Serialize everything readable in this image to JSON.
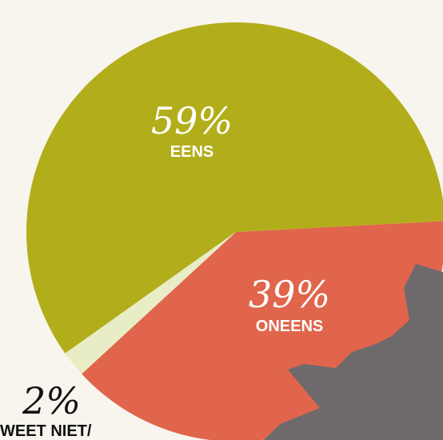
{
  "chart_data": {
    "type": "pie",
    "categories": [
      "EENS",
      "ONEENS",
      "WEET NIET/"
    ],
    "values": [
      59,
      39,
      2
    ],
    "value_labels": [
      "59%",
      "39%",
      "2%"
    ],
    "colors": [
      "#b2ae1b",
      "#e0654c",
      "#e9edc6"
    ]
  }
}
